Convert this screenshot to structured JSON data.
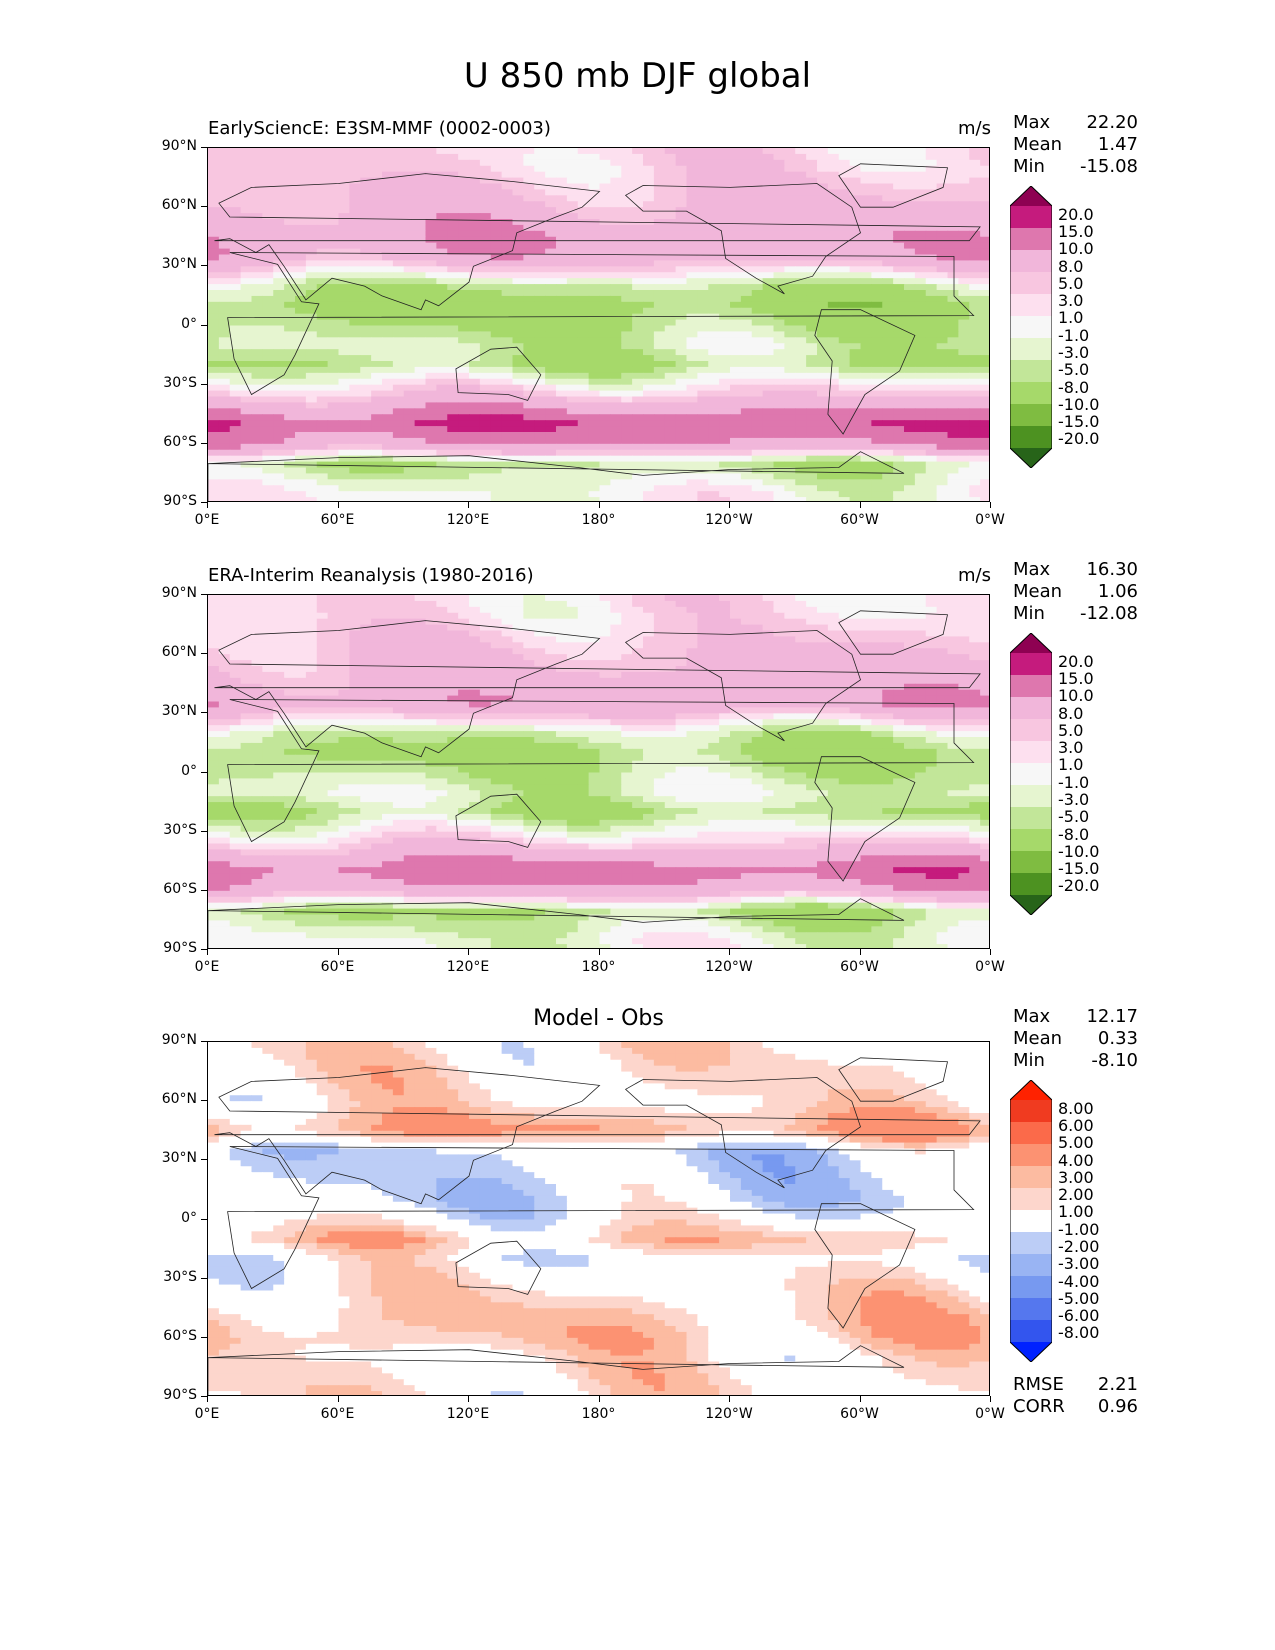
{
  "figure_title": "U 850 mb DJF global",
  "colors": {
    "test_ref_palette": [
      "#276419",
      "#4d9221",
      "#7fbc41",
      "#a6d96a",
      "#c2e699",
      "#e6f5d0",
      "#f7f7f7",
      "#fde0ef",
      "#f8c6e0",
      "#f1b6da",
      "#de77ae",
      "#c51b7d",
      "#8e0152"
    ],
    "diff_palette": [
      "#0022ff",
      "#3355ee",
      "#5577ee",
      "#7799f0",
      "#99b4f3",
      "#bccdf6",
      "#ffffff",
      "#fdd6cc",
      "#fcbba1",
      "#fc9272",
      "#fb6a4a",
      "#f03b20",
      "#ff2200"
    ],
    "land_outline": "#222222"
  },
  "lat_ticks": [
    "90°N",
    "60°N",
    "30°N",
    "0°",
    "30°S",
    "60°S",
    "90°S"
  ],
  "lon_ticks": [
    "0°E",
    "60°E",
    "120°E",
    "180°",
    "120°W",
    "60°W",
    "0°W"
  ],
  "chart_data": [
    {
      "type": "heatmap",
      "title": "EarlySciencE: E3SM-MMF (0002-0003)",
      "units": "m/s",
      "stats": {
        "Max": "22.20",
        "Mean": "1.47",
        "Min": "-15.08"
      },
      "colorbar_levels": [
        "20.0",
        "15.0",
        "10.0",
        "8.0",
        "5.0",
        "3.0",
        "1.0",
        "-1.0",
        "-3.0",
        "-5.0",
        "-8.0",
        "-10.0",
        "-15.0",
        "-20.0"
      ],
      "zonal_mean_profile": [
        {
          "lat": 80,
          "value": 3
        },
        {
          "lat": 60,
          "value": 6
        },
        {
          "lat": 45,
          "value": 9
        },
        {
          "lat": 35,
          "value": 8
        },
        {
          "lat": 20,
          "value": -4
        },
        {
          "lat": 10,
          "value": -7
        },
        {
          "lat": 0,
          "value": -5
        },
        {
          "lat": -10,
          "value": -3
        },
        {
          "lat": -20,
          "value": -5
        },
        {
          "lat": -35,
          "value": 4
        },
        {
          "lat": -50,
          "value": 15
        },
        {
          "lat": -60,
          "value": 10
        },
        {
          "lat": -70,
          "value": -4
        },
        {
          "lat": -85,
          "value": 0
        }
      ]
    },
    {
      "type": "heatmap",
      "title": "ERA-Interim Reanalysis (1980-2016)",
      "units": "m/s",
      "stats": {
        "Max": "16.30",
        "Mean": "1.06",
        "Min": "-12.08"
      },
      "colorbar_levels": [
        "20.0",
        "15.0",
        "10.0",
        "8.0",
        "5.0",
        "3.0",
        "1.0",
        "-1.0",
        "-3.0",
        "-5.0",
        "-8.0",
        "-10.0",
        "-15.0",
        "-20.0"
      ],
      "zonal_mean_profile": [
        {
          "lat": 80,
          "value": 2
        },
        {
          "lat": 60,
          "value": 5
        },
        {
          "lat": 45,
          "value": 7
        },
        {
          "lat": 35,
          "value": 9
        },
        {
          "lat": 20,
          "value": -3
        },
        {
          "lat": 10,
          "value": -6
        },
        {
          "lat": 0,
          "value": -4
        },
        {
          "lat": -10,
          "value": -2
        },
        {
          "lat": -20,
          "value": -5
        },
        {
          "lat": -35,
          "value": 3
        },
        {
          "lat": -50,
          "value": 13
        },
        {
          "lat": -60,
          "value": 8
        },
        {
          "lat": -70,
          "value": -5
        },
        {
          "lat": -85,
          "value": -1
        }
      ]
    },
    {
      "type": "heatmap",
      "title": "Model - Obs",
      "units": "",
      "stats": {
        "Max": "12.17",
        "Mean": "0.33",
        "Min": "-8.10"
      },
      "extra_stats": {
        "RMSE": "2.21",
        "CORR": "0.96"
      },
      "colorbar_levels": [
        "8.00",
        "6.00",
        "5.00",
        "4.00",
        "3.00",
        "2.00",
        "1.00",
        "-1.00",
        "-2.00",
        "-3.00",
        "-4.00",
        "-5.00",
        "-6.00",
        "-8.00"
      ],
      "zonal_mean_profile": [
        {
          "lat": 80,
          "value": 1
        },
        {
          "lat": 60,
          "value": 1
        },
        {
          "lat": 45,
          "value": 3
        },
        {
          "lat": 35,
          "value": -1
        },
        {
          "lat": 20,
          "value": -1
        },
        {
          "lat": 10,
          "value": -1
        },
        {
          "lat": 0,
          "value": 0
        },
        {
          "lat": -10,
          "value": 2
        },
        {
          "lat": -20,
          "value": 0
        },
        {
          "lat": -35,
          "value": 1
        },
        {
          "lat": -50,
          "value": 2
        },
        {
          "lat": -60,
          "value": 2
        },
        {
          "lat": -70,
          "value": 1
        },
        {
          "lat": -85,
          "value": 1
        }
      ]
    }
  ]
}
